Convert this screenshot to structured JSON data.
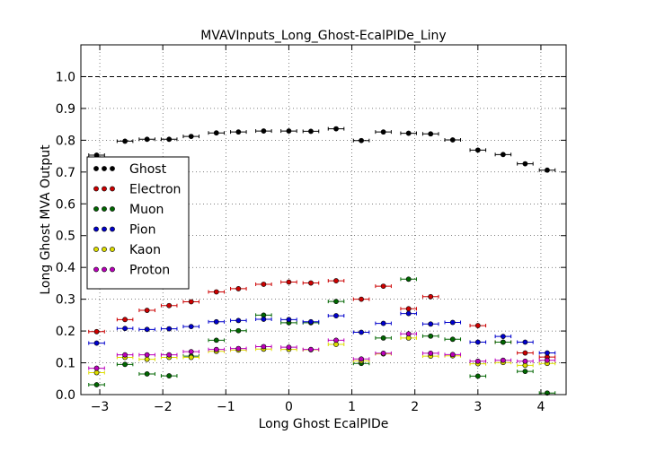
{
  "chart_data": {
    "type": "scatter",
    "title": "MVAVInputs_Long_Ghost-EcalPIDe_Liny",
    "xlabel": "Long Ghost EcalPIDe",
    "ylabel": "Long Ghost MVA Output",
    "xlim": [
      -3.3,
      4.4
    ],
    "ylim": [
      0.0,
      1.1
    ],
    "x_ticks": [
      -3,
      -2,
      -1,
      0,
      1,
      2,
      3,
      4
    ],
    "x_tick_labels": [
      "−3",
      "−2",
      "−1",
      "0",
      "1",
      "2",
      "3",
      "4"
    ],
    "y_ticks": [
      0.0,
      0.1,
      0.2,
      0.3,
      0.4,
      0.5,
      0.6,
      0.7,
      0.8,
      0.9,
      1.0
    ],
    "y_tick_labels": [
      "0.0",
      "0.1",
      "0.2",
      "0.3",
      "0.4",
      "0.5",
      "0.6",
      "0.7",
      "0.8",
      "0.9",
      "1.0"
    ],
    "reference_line": {
      "y": 1.0,
      "style": "dashed"
    },
    "grid": true,
    "legend_position": "center-left",
    "bin_width": 0.25,
    "series": [
      {
        "name": "Ghost",
        "color": "#000000",
        "points": [
          [
            -3.05,
            0.753
          ],
          [
            -2.6,
            0.797
          ],
          [
            -2.25,
            0.803
          ],
          [
            -1.9,
            0.803
          ],
          [
            -1.55,
            0.812
          ],
          [
            -1.15,
            0.823
          ],
          [
            -0.8,
            0.826
          ],
          [
            -0.4,
            0.829
          ],
          [
            0.0,
            0.829
          ],
          [
            0.35,
            0.828
          ],
          [
            0.75,
            0.836
          ],
          [
            1.15,
            0.799
          ],
          [
            1.5,
            0.826
          ],
          [
            1.9,
            0.822
          ],
          [
            2.25,
            0.82
          ],
          [
            2.6,
            0.801
          ],
          [
            3.0,
            0.769
          ],
          [
            3.4,
            0.755
          ],
          [
            3.75,
            0.726
          ],
          [
            4.1,
            0.706
          ]
        ]
      },
      {
        "name": "Electron",
        "color": "#cc0000",
        "points": [
          [
            -3.05,
            0.198
          ],
          [
            -2.6,
            0.236
          ],
          [
            -2.25,
            0.265
          ],
          [
            -1.9,
            0.28
          ],
          [
            -1.55,
            0.292
          ],
          [
            -1.15,
            0.323
          ],
          [
            -0.8,
            0.333
          ],
          [
            -0.4,
            0.347
          ],
          [
            0.0,
            0.354
          ],
          [
            0.35,
            0.351
          ],
          [
            0.75,
            0.358
          ],
          [
            1.15,
            0.3
          ],
          [
            1.5,
            0.341
          ],
          [
            1.9,
            0.27
          ],
          [
            2.25,
            0.308
          ],
          [
            3.0,
            0.217
          ],
          [
            3.4,
            0.165
          ],
          [
            3.75,
            0.131
          ],
          [
            4.1,
            0.118
          ]
        ]
      },
      {
        "name": "Muon",
        "color": "#006600",
        "points": [
          [
            -3.05,
            0.031
          ],
          [
            -2.6,
            0.095
          ],
          [
            -2.25,
            0.065
          ],
          [
            -1.9,
            0.059
          ],
          [
            -1.55,
            0.121
          ],
          [
            -1.15,
            0.171
          ],
          [
            -0.8,
            0.201
          ],
          [
            -0.4,
            0.25
          ],
          [
            0.0,
            0.226
          ],
          [
            0.35,
            0.226
          ],
          [
            0.75,
            0.293
          ],
          [
            1.15,
            0.098
          ],
          [
            1.5,
            0.178
          ],
          [
            1.9,
            0.363
          ],
          [
            2.25,
            0.184
          ],
          [
            2.6,
            0.174
          ],
          [
            3.0,
            0.058
          ],
          [
            3.4,
            0.165
          ],
          [
            3.75,
            0.073
          ],
          [
            4.1,
            0.005
          ]
        ]
      },
      {
        "name": "Pion",
        "color": "#0000cc",
        "points": [
          [
            -3.05,
            0.162
          ],
          [
            -2.6,
            0.208
          ],
          [
            -2.25,
            0.205
          ],
          [
            -1.9,
            0.207
          ],
          [
            -1.55,
            0.214
          ],
          [
            -1.15,
            0.229
          ],
          [
            -0.8,
            0.233
          ],
          [
            -0.4,
            0.237
          ],
          [
            0.0,
            0.236
          ],
          [
            0.35,
            0.229
          ],
          [
            0.75,
            0.248
          ],
          [
            1.15,
            0.196
          ],
          [
            1.5,
            0.224
          ],
          [
            1.9,
            0.255
          ],
          [
            2.25,
            0.222
          ],
          [
            2.6,
            0.227
          ],
          [
            3.0,
            0.165
          ],
          [
            3.4,
            0.183
          ],
          [
            3.75,
            0.165
          ],
          [
            4.1,
            0.131
          ]
        ]
      },
      {
        "name": "Kaon",
        "color": "#dddd00",
        "points": [
          [
            -3.05,
            0.069
          ],
          [
            -2.6,
            0.117
          ],
          [
            -2.25,
            0.111
          ],
          [
            -1.9,
            0.117
          ],
          [
            -1.55,
            0.117
          ],
          [
            -1.15,
            0.136
          ],
          [
            -0.8,
            0.14
          ],
          [
            -0.4,
            0.143
          ],
          [
            0.0,
            0.142
          ],
          [
            0.35,
            0.141
          ],
          [
            0.75,
            0.158
          ],
          [
            1.15,
            0.106
          ],
          [
            1.5,
            0.128
          ],
          [
            1.9,
            0.178
          ],
          [
            2.25,
            0.121
          ],
          [
            2.6,
            0.122
          ],
          [
            3.0,
            0.097
          ],
          [
            3.4,
            0.101
          ],
          [
            3.75,
            0.092
          ],
          [
            4.1,
            0.098
          ]
        ]
      },
      {
        "name": "Proton",
        "color": "#bb00bb",
        "points": [
          [
            -3.05,
            0.083
          ],
          [
            -2.6,
            0.125
          ],
          [
            -2.25,
            0.125
          ],
          [
            -1.9,
            0.125
          ],
          [
            -1.55,
            0.135
          ],
          [
            -1.15,
            0.142
          ],
          [
            -0.8,
            0.145
          ],
          [
            -0.4,
            0.151
          ],
          [
            0.0,
            0.149
          ],
          [
            0.35,
            0.142
          ],
          [
            0.75,
            0.171
          ],
          [
            1.15,
            0.112
          ],
          [
            1.5,
            0.13
          ],
          [
            1.9,
            0.191
          ],
          [
            2.25,
            0.13
          ],
          [
            2.6,
            0.126
          ],
          [
            3.0,
            0.105
          ],
          [
            3.4,
            0.108
          ],
          [
            3.75,
            0.105
          ],
          [
            4.1,
            0.108
          ]
        ]
      }
    ]
  }
}
